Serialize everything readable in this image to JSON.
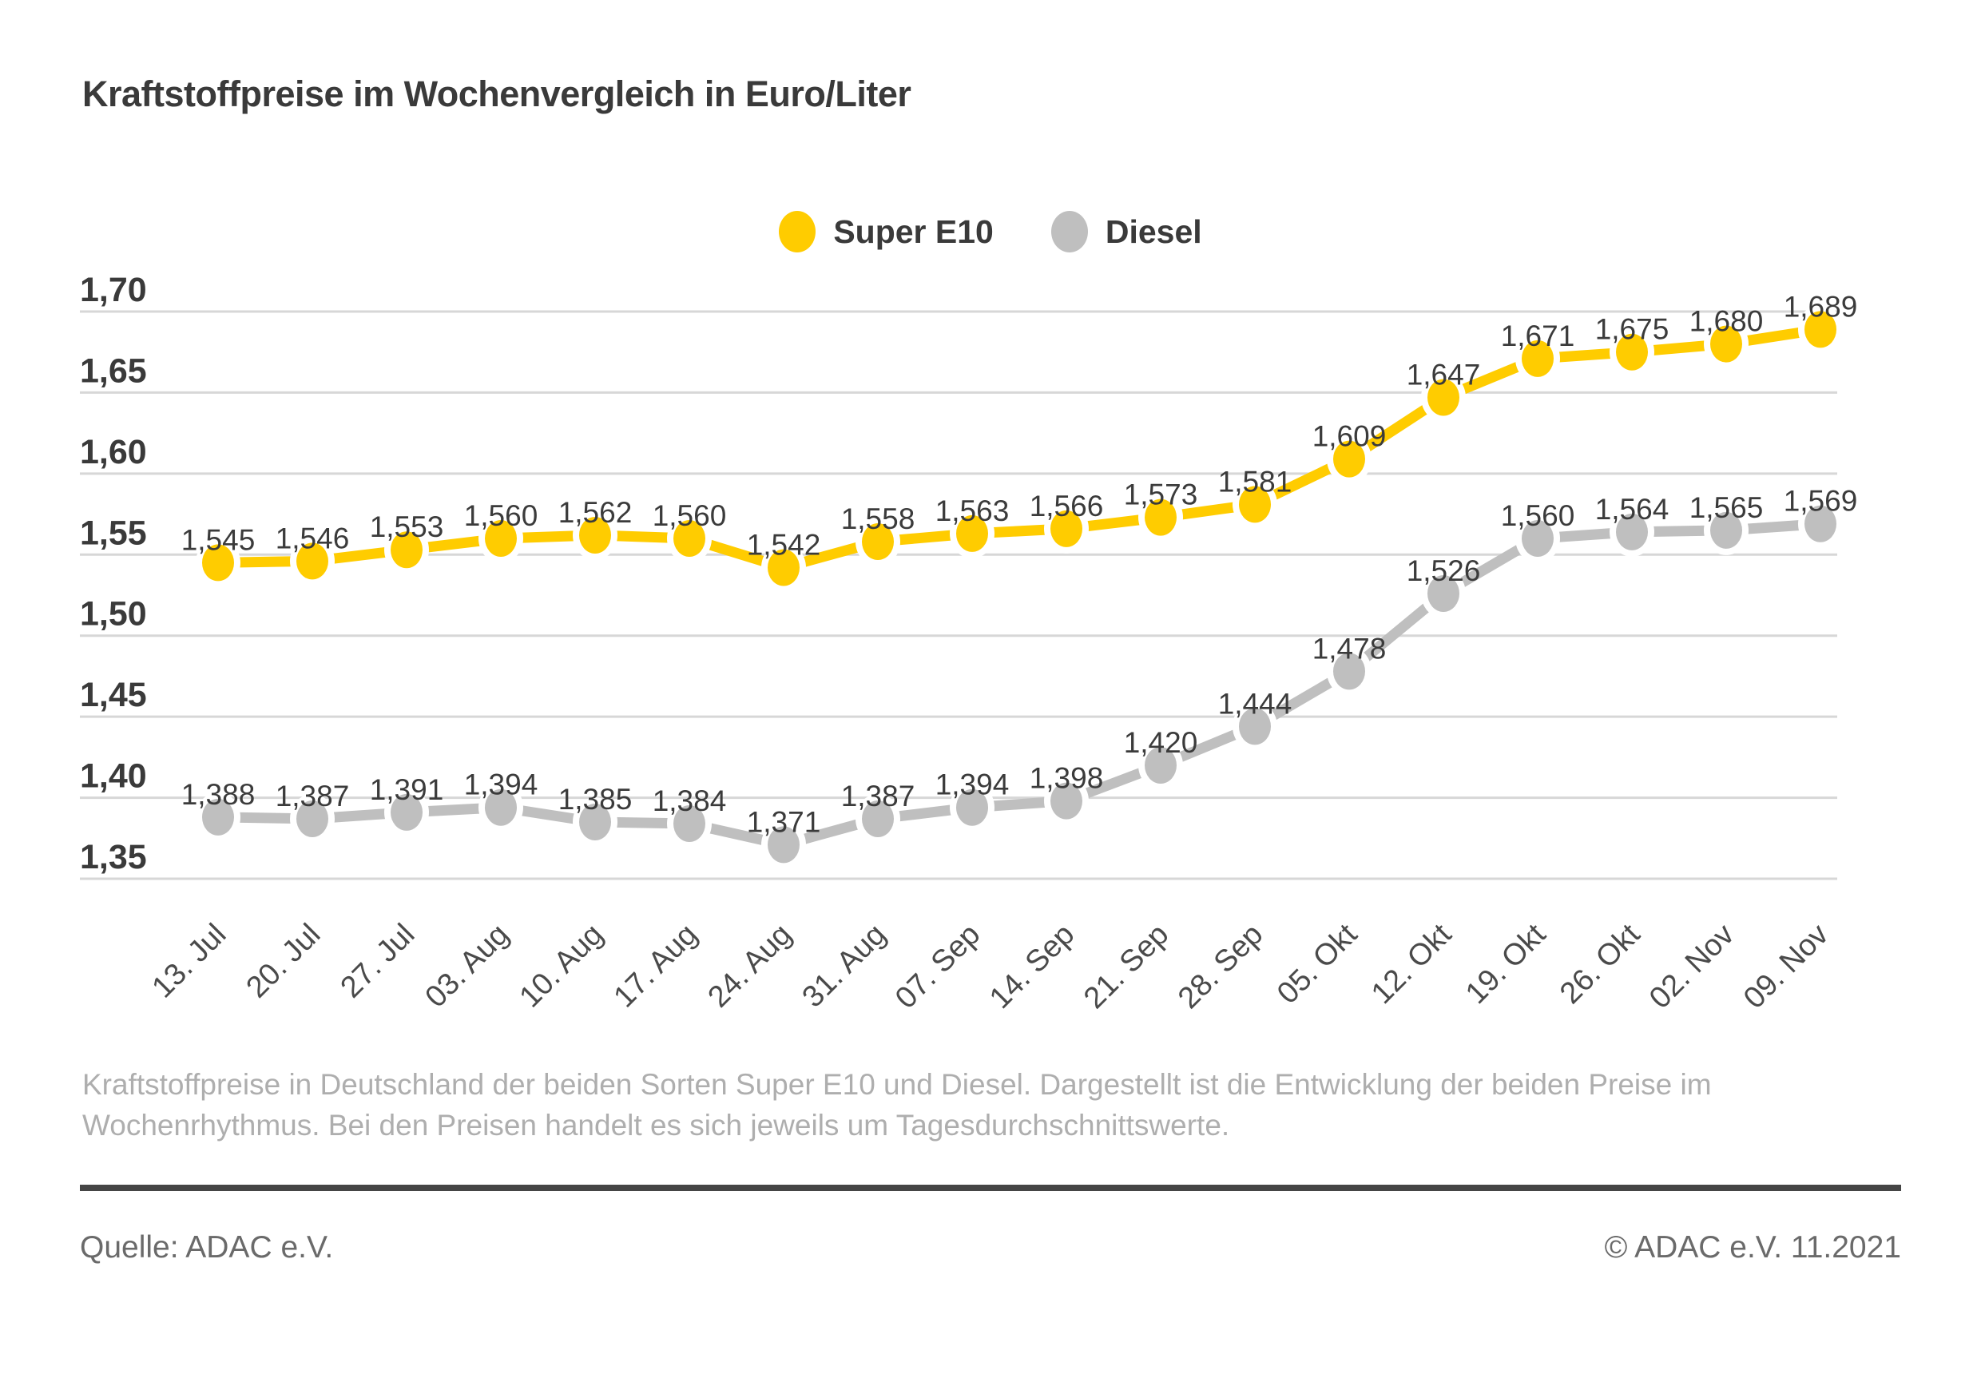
{
  "title": "Kraftstoffpreise im Wochenvergleich in Euro/Liter",
  "legend": [
    {
      "label": "Super E10",
      "color": "#FFCC00"
    },
    {
      "label": "Diesel",
      "color": "#BFBFBF"
    }
  ],
  "chart_data": {
    "type": "line",
    "title": "Kraftstoffpreise im Wochenvergleich in Euro/Liter",
    "xlabel": "",
    "ylabel": "Euro/Liter",
    "grid": true,
    "grid_color": "#d7d7d7",
    "legend_position": "top-center",
    "ylim": [
      1.35,
      1.7
    ],
    "yticks": [
      {
        "value": 1.7,
        "label": "1,70"
      },
      {
        "value": 1.65,
        "label": "1,65"
      },
      {
        "value": 1.6,
        "label": "1,60"
      },
      {
        "value": 1.55,
        "label": "1,55"
      },
      {
        "value": 1.5,
        "label": "1,50"
      },
      {
        "value": 1.45,
        "label": "1,45"
      },
      {
        "value": 1.4,
        "label": "1,40"
      },
      {
        "value": 1.35,
        "label": "1,35"
      }
    ],
    "categories": [
      "13. Jul",
      "20. Jul",
      "27. Jul",
      "03. Aug",
      "10. Aug",
      "17. Aug",
      "24. Aug",
      "31. Aug",
      "07. Sep",
      "14. Sep",
      "21. Sep",
      "28. Sep",
      "05. Okt",
      "12. Okt",
      "19. Okt",
      "26. Okt",
      "02. Nov",
      "09. Nov"
    ],
    "series": [
      {
        "name": "Super E10",
        "color": "#FFCC00",
        "values": [
          1.545,
          1.546,
          1.553,
          1.56,
          1.562,
          1.56,
          1.542,
          1.558,
          1.563,
          1.566,
          1.573,
          1.581,
          1.609,
          1.647,
          1.671,
          1.675,
          1.68,
          1.689
        ],
        "labels": [
          "1,545",
          "1,546",
          "1,553",
          "1,560",
          "1,562",
          "1,560",
          "1,542",
          "1,558",
          "1,563",
          "1,566",
          "1,573",
          "1,581",
          "1,609",
          "1,647",
          "1,671",
          "1,675",
          "1,680",
          "1,689"
        ]
      },
      {
        "name": "Diesel",
        "color": "#BFBFBF",
        "values": [
          1.388,
          1.387,
          1.391,
          1.394,
          1.385,
          1.384,
          1.371,
          1.387,
          1.394,
          1.398,
          1.42,
          1.444,
          1.478,
          1.526,
          1.56,
          1.564,
          1.565,
          1.569
        ],
        "labels": [
          "1,388",
          "1,387",
          "1,391",
          "1,394",
          "1,385",
          "1,384",
          "1,371",
          "1,387",
          "1,394",
          "1,398",
          "1,420",
          "1,444",
          "1,478",
          "1,526",
          "1,560",
          "1,564",
          "1,565",
          "1,569"
        ]
      }
    ]
  },
  "footer": {
    "description": "Kraftstoffpreise in Deutschland der beiden Sorten Super E10 und Diesel. Dargestellt ist die Entwicklung der beiden Preise im Wochenrhythmus. Bei den Preisen handelt es sich jeweils um Tagesdurchschnittswerte.",
    "source": "Quelle: ADAC e.V.",
    "copyright": "© ADAC e.V. 11.2021"
  }
}
